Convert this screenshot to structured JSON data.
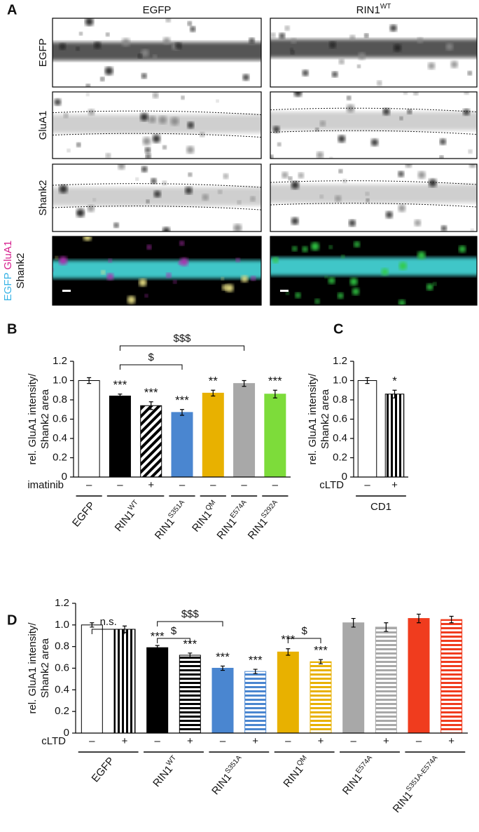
{
  "panel_a": {
    "label": "A",
    "columns": [
      {
        "label": "EGFP"
      },
      {
        "label": "RIN1",
        "sup": "WT"
      }
    ],
    "rows": [
      "EGFP",
      "GluA1",
      "Shank2"
    ],
    "merge_labels": [
      "EGFP",
      "GluA1",
      "Shank2"
    ],
    "merge_colors": [
      "#3ab4e6",
      "#d6208e",
      "#22a82a"
    ]
  },
  "chart_data": [
    {
      "type": "bar",
      "panel": "B",
      "ylabel": [
        "rel. GluA1 intensity/",
        "Shank2 area"
      ],
      "ylim": [
        0,
        1.2
      ],
      "yticks": [
        0,
        0.2,
        0.4,
        0.6,
        0.8,
        {
          "value": 1,
          "label": "1.0"
        },
        1.2
      ],
      "values": [
        1.0,
        0.84,
        0.74,
        0.67,
        0.87,
        0.97,
        0.86
      ],
      "errors": [
        0.03,
        0.02,
        0.04,
        0.03,
        0.03,
        0.03,
        0.04
      ],
      "colors": [
        "#ffffff",
        "#000000",
        "#000000",
        "#4a86d0",
        "#e8b100",
        "#a8a8a8",
        "#7ddc3a"
      ],
      "patterns": [
        "solid",
        "solid",
        "diagonal",
        "solid",
        "solid",
        "solid",
        "solid"
      ],
      "significance": [
        null,
        "***",
        "***",
        "***",
        "**",
        null,
        "***"
      ],
      "treatment_label": "imatinib",
      "treatments": [
        "–",
        "–",
        "+",
        "–",
        "–",
        "–",
        "–"
      ],
      "groups": [
        {
          "label": "EGFP",
          "count": 1
        },
        {
          "label": "RIN1",
          "sup": "WT",
          "count": 2
        },
        {
          "label": "RIN1",
          "sup": "S351A",
          "count": 1
        },
        {
          "label": "RIN1",
          "sup": "QM",
          "count": 1
        },
        {
          "label": "RIN1",
          "sup": "E574A",
          "count": 1
        },
        {
          "label": "RIN1",
          "sup": "S292A",
          "count": 1
        }
      ],
      "rotate_group_labels": true,
      "brackets": [
        {
          "from": 1,
          "to": 5,
          "label": "$$$"
        },
        {
          "from": 1,
          "to": 3,
          "label": "$"
        }
      ]
    },
    {
      "type": "bar",
      "panel": "C",
      "ylabel": [
        "rel. GluA1 intensity/",
        "Shank2 area"
      ],
      "ylim": [
        0,
        1.2
      ],
      "yticks": [
        0,
        0.2,
        0.4,
        0.6,
        0.8,
        {
          "value": 1,
          "label": "1.0"
        },
        1.2
      ],
      "values": [
        1.0,
        0.86
      ],
      "errors": [
        0.03,
        0.04
      ],
      "colors": [
        "#ffffff",
        "#000000"
      ],
      "patterns": [
        "solid",
        "vertical"
      ],
      "significance": [
        null,
        "*"
      ],
      "treatment_label": "cLTD",
      "treatments": [
        "–",
        "+"
      ],
      "groups": [
        {
          "label": "CD1",
          "count": 2
        }
      ],
      "rotate_group_labels": false,
      "brackets": []
    },
    {
      "type": "bar",
      "panel": "D",
      "ylabel": [
        "rel. GluA1 intensity/",
        "Shank2 area"
      ],
      "ylim": [
        0,
        1.2
      ],
      "yticks": [
        0,
        0.2,
        0.4,
        0.6,
        0.8,
        {
          "value": 1,
          "label": "1.0"
        },
        1.2
      ],
      "values": [
        1.0,
        0.96,
        0.79,
        0.72,
        0.6,
        0.57,
        0.75,
        0.66,
        1.02,
        0.98,
        1.06,
        1.05
      ],
      "errors": [
        0.02,
        0.03,
        0.02,
        0.02,
        0.02,
        0.02,
        0.03,
        0.02,
        0.04,
        0.04,
        0.04,
        0.03
      ],
      "colors": [
        "#000000",
        "#000000",
        "#000000",
        "#000000",
        "#4a86d0",
        "#4a86d0",
        "#e8b100",
        "#e8b100",
        "#a8a8a8",
        "#a8a8a8",
        "#f03c1e",
        "#f03c1e"
      ],
      "patterns": [
        "white",
        "vertical",
        "solid",
        "horizontal",
        "solid",
        "horizontal",
        "solid",
        "horizontal",
        "solid",
        "horizontal",
        "solid",
        "horizontal"
      ],
      "significance": [
        null,
        null,
        "***",
        "***",
        "***",
        "***",
        "***",
        "***",
        null,
        null,
        null,
        null
      ],
      "treatment_label": "cLTD",
      "treatments": [
        "–",
        "+",
        "–",
        "+",
        "–",
        "+",
        "–",
        "+",
        "–",
        "+",
        "–",
        "+"
      ],
      "groups": [
        {
          "label": "EGFP",
          "count": 2
        },
        {
          "label": "RIN1",
          "sup": "WT",
          "count": 2
        },
        {
          "label": "RIN1",
          "sup": "S351A",
          "count": 2
        },
        {
          "label": "RIN1",
          "sup": "QM",
          "count": 2
        },
        {
          "label": "RIN1",
          "sup": "E574A",
          "count": 2
        },
        {
          "label": "RIN1",
          "sup": "S351A-E574A",
          "count": 2
        }
      ],
      "rotate_group_labels": true,
      "brackets": [
        {
          "from": 0,
          "to": 1,
          "label": "n.s."
        },
        {
          "from": 2,
          "to": 4,
          "label": "$$$"
        },
        {
          "from": 2,
          "to": 3,
          "label": "$"
        },
        {
          "from": 6,
          "to": 7,
          "label": "$"
        }
      ]
    }
  ]
}
